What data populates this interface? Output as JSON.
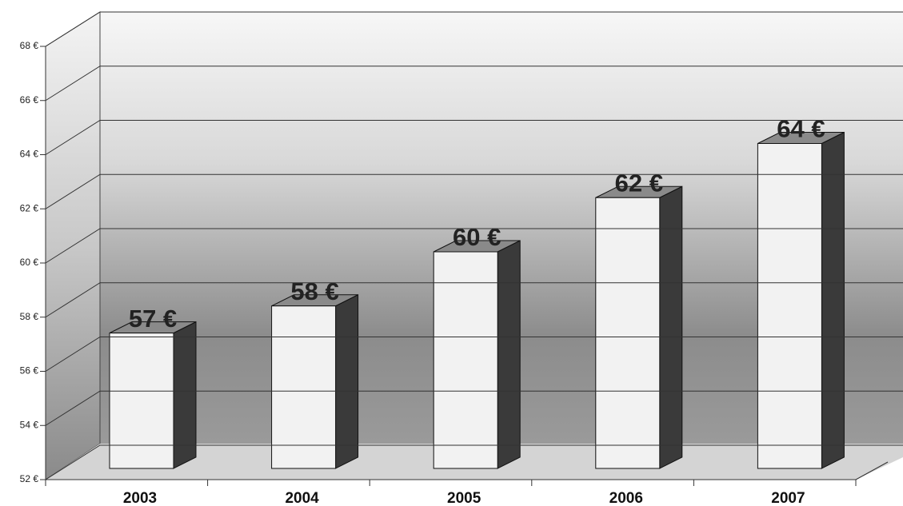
{
  "chart_data": {
    "type": "bar",
    "categories": [
      "2003",
      "2004",
      "2005",
      "2006",
      "2007"
    ],
    "values": [
      57,
      58,
      60,
      62,
      64
    ],
    "value_labels": [
      "57 €",
      "58 €",
      "60 €",
      "62 €",
      "64 €"
    ],
    "color": "#f2f2f2",
    "ylim": [
      52,
      68
    ],
    "yticks": [
      {
        "value": 52,
        "label": "52 €"
      },
      {
        "value": 54,
        "label": "54 €"
      },
      {
        "value": 56,
        "label": "56 €"
      },
      {
        "value": 58,
        "label": "58 €"
      },
      {
        "value": 60,
        "label": "60 €"
      },
      {
        "value": 62,
        "label": "62 €"
      },
      {
        "value": 64,
        "label": "64 €"
      },
      {
        "value": 66,
        "label": "66 €"
      },
      {
        "value": 68,
        "label": "68 €"
      }
    ],
    "grid": true
  }
}
